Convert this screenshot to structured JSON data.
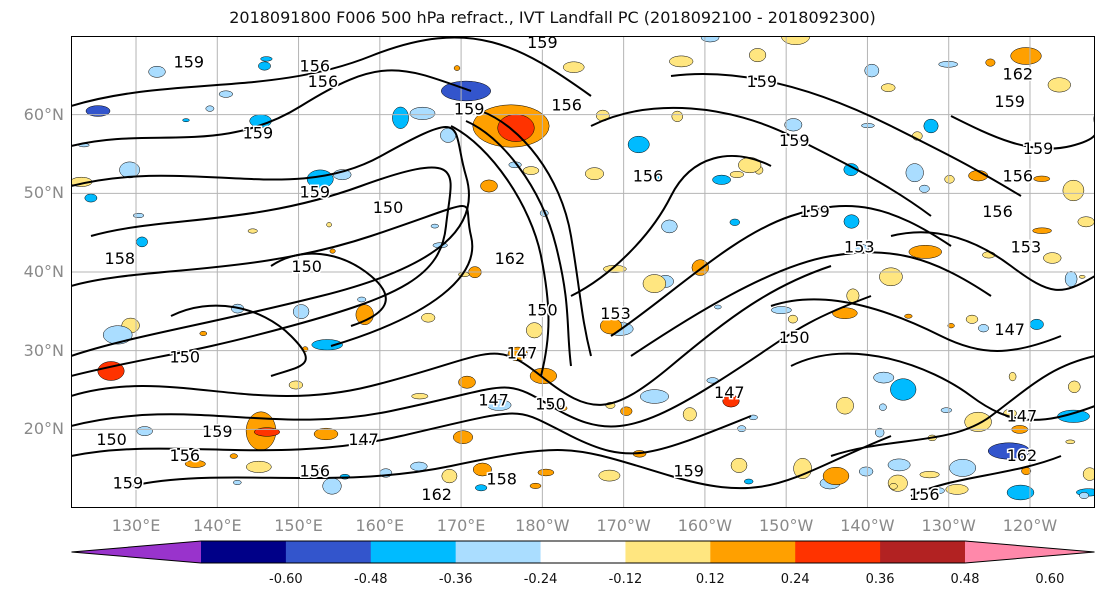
{
  "title": "2018091800 F006 500 hPa refract., IVT Landfall PC (2018092100 - 2018092300)",
  "lat_labels": [
    "60°N",
    "50°N",
    "40°N",
    "30°N",
    "20°N"
  ],
  "lat_values": [
    60,
    50,
    40,
    30,
    20
  ],
  "lon_labels": [
    "130°E",
    "140°E",
    "150°E",
    "160°E",
    "170°E",
    "180°W",
    "170°W",
    "160°W",
    "150°W",
    "140°W",
    "130°W",
    "120°W"
  ],
  "lon_values": [
    130,
    140,
    150,
    160,
    170,
    180,
    190,
    200,
    210,
    220,
    230,
    240
  ],
  "map_extent": {
    "lon_min": 122,
    "lon_max": 248,
    "lat_min": 10,
    "lat_max": 70
  },
  "contour_labels": [
    {
      "text": "159",
      "lon": 136.5,
      "lat": 66
    },
    {
      "text": "156",
      "lon": 152,
      "lat": 65.5
    },
    {
      "text": "156",
      "lon": 153,
      "lat": 63.5
    },
    {
      "text": "159",
      "lon": 180,
      "lat": 68.5
    },
    {
      "text": "156",
      "lon": 183,
      "lat": 60.5
    },
    {
      "text": "159",
      "lon": 207,
      "lat": 63.5
    },
    {
      "text": "159",
      "lon": 211,
      "lat": 56
    },
    {
      "text": "156",
      "lon": 193,
      "lat": 51.5
    },
    {
      "text": "159",
      "lon": 145,
      "lat": 57
    },
    {
      "text": "159",
      "lon": 152,
      "lat": 49.5
    },
    {
      "text": "159",
      "lon": 171,
      "lat": 60
    },
    {
      "text": "150",
      "lon": 161,
      "lat": 47.5
    },
    {
      "text": "150",
      "lon": 151,
      "lat": 40
    },
    {
      "text": "158",
      "lon": 128,
      "lat": 41
    },
    {
      "text": "162",
      "lon": 176,
      "lat": 41
    },
    {
      "text": "150",
      "lon": 180,
      "lat": 34.5
    },
    {
      "text": "153",
      "lon": 189,
      "lat": 34
    },
    {
      "text": "150",
      "lon": 211,
      "lat": 31
    },
    {
      "text": "159",
      "lon": 213.5,
      "lat": 47
    },
    {
      "text": "153",
      "lon": 219,
      "lat": 42.5
    },
    {
      "text": "150",
      "lon": 136,
      "lat": 28.5
    },
    {
      "text": "147",
      "lon": 177.5,
      "lat": 29
    },
    {
      "text": "147",
      "lon": 174,
      "lat": 23
    },
    {
      "text": "150",
      "lon": 181,
      "lat": 22.5
    },
    {
      "text": "147",
      "lon": 203,
      "lat": 24
    },
    {
      "text": "147",
      "lon": 158,
      "lat": 18
    },
    {
      "text": "159",
      "lon": 140,
      "lat": 19
    },
    {
      "text": "156",
      "lon": 136,
      "lat": 16
    },
    {
      "text": "156",
      "lon": 152,
      "lat": 14
    },
    {
      "text": "159",
      "lon": 129,
      "lat": 12.5
    },
    {
      "text": "150",
      "lon": 127,
      "lat": 18
    },
    {
      "text": "158",
      "lon": 175,
      "lat": 13
    },
    {
      "text": "162",
      "lon": 167,
      "lat": 11
    },
    {
      "text": "159",
      "lon": 198,
      "lat": 14
    },
    {
      "text": "156",
      "lon": 227,
      "lat": 11
    },
    {
      "text": "162",
      "lon": 239,
      "lat": 16
    },
    {
      "text": "159",
      "lon": 241,
      "lat": 55
    },
    {
      "text": "156",
      "lon": 238.5,
      "lat": 51.5
    },
    {
      "text": "159",
      "lon": 237.5,
      "lat": 61
    },
    {
      "text": "162",
      "lon": 238.5,
      "lat": 64.5
    },
    {
      "text": "153",
      "lon": 239.5,
      "lat": 42.5
    },
    {
      "text": "147",
      "lon": 237.5,
      "lat": 32
    },
    {
      "text": "156",
      "lon": 236,
      "lat": 47
    },
    {
      "text": "147",
      "lon": 239,
      "lat": 21
    }
  ],
  "colorbar": {
    "ticks": [
      "-0.60",
      "-0.48",
      "-0.36",
      "-0.24",
      "-0.12",
      "0.12",
      "0.24",
      "0.36",
      "0.48",
      "0.60"
    ],
    "colors": [
      "#9933cc",
      "#000088",
      "#3355cc",
      "#00bbff",
      "#aaddff",
      "#ffffff",
      "#ffe680",
      "#ffa000",
      "#ff3300",
      "#b22222",
      "#ff88aa"
    ]
  },
  "anomaly_palette": {
    "neg_light": "#aaddff",
    "neg_mid": "#00bbff",
    "neg_dark": "#3355cc",
    "pos_light": "#ffe680",
    "pos_mid": "#ffa000",
    "pos_dark": "#ff3300"
  },
  "gridline_color": "#b4b4b4"
}
